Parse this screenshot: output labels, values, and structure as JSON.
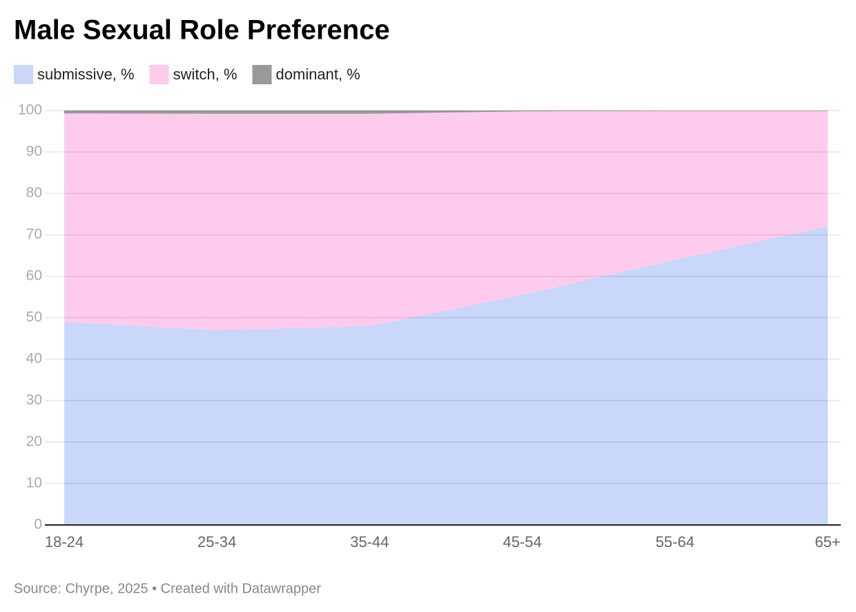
{
  "chart_data": {
    "type": "stacked-area",
    "title": "Male Sexual Role Preference",
    "source": "Source: Chyrpe, 2025 • Created with Datawrapper",
    "categories": [
      "18-24",
      "25-34",
      "35-44",
      "45-54",
      "55-64",
      "65+"
    ],
    "series": [
      {
        "name": "submissive, %",
        "color": "#c8d7fa",
        "values": [
          49,
          47,
          48,
          55.5,
          64,
          72
        ]
      },
      {
        "name": "switch, %",
        "color": "#fecbed",
        "values": [
          50.3,
          52.2,
          51.2,
          44.3,
          35.9,
          27.9
        ]
      },
      {
        "name": "dominant, %",
        "color": "#999999",
        "values": [
          0.7,
          0.8,
          0.8,
          0.2,
          0.1,
          0.1
        ]
      }
    ],
    "ylim": [
      0,
      100
    ],
    "yticks": [
      0,
      10,
      20,
      30,
      40,
      50,
      60,
      70,
      80,
      90,
      100
    ],
    "grid": true
  }
}
